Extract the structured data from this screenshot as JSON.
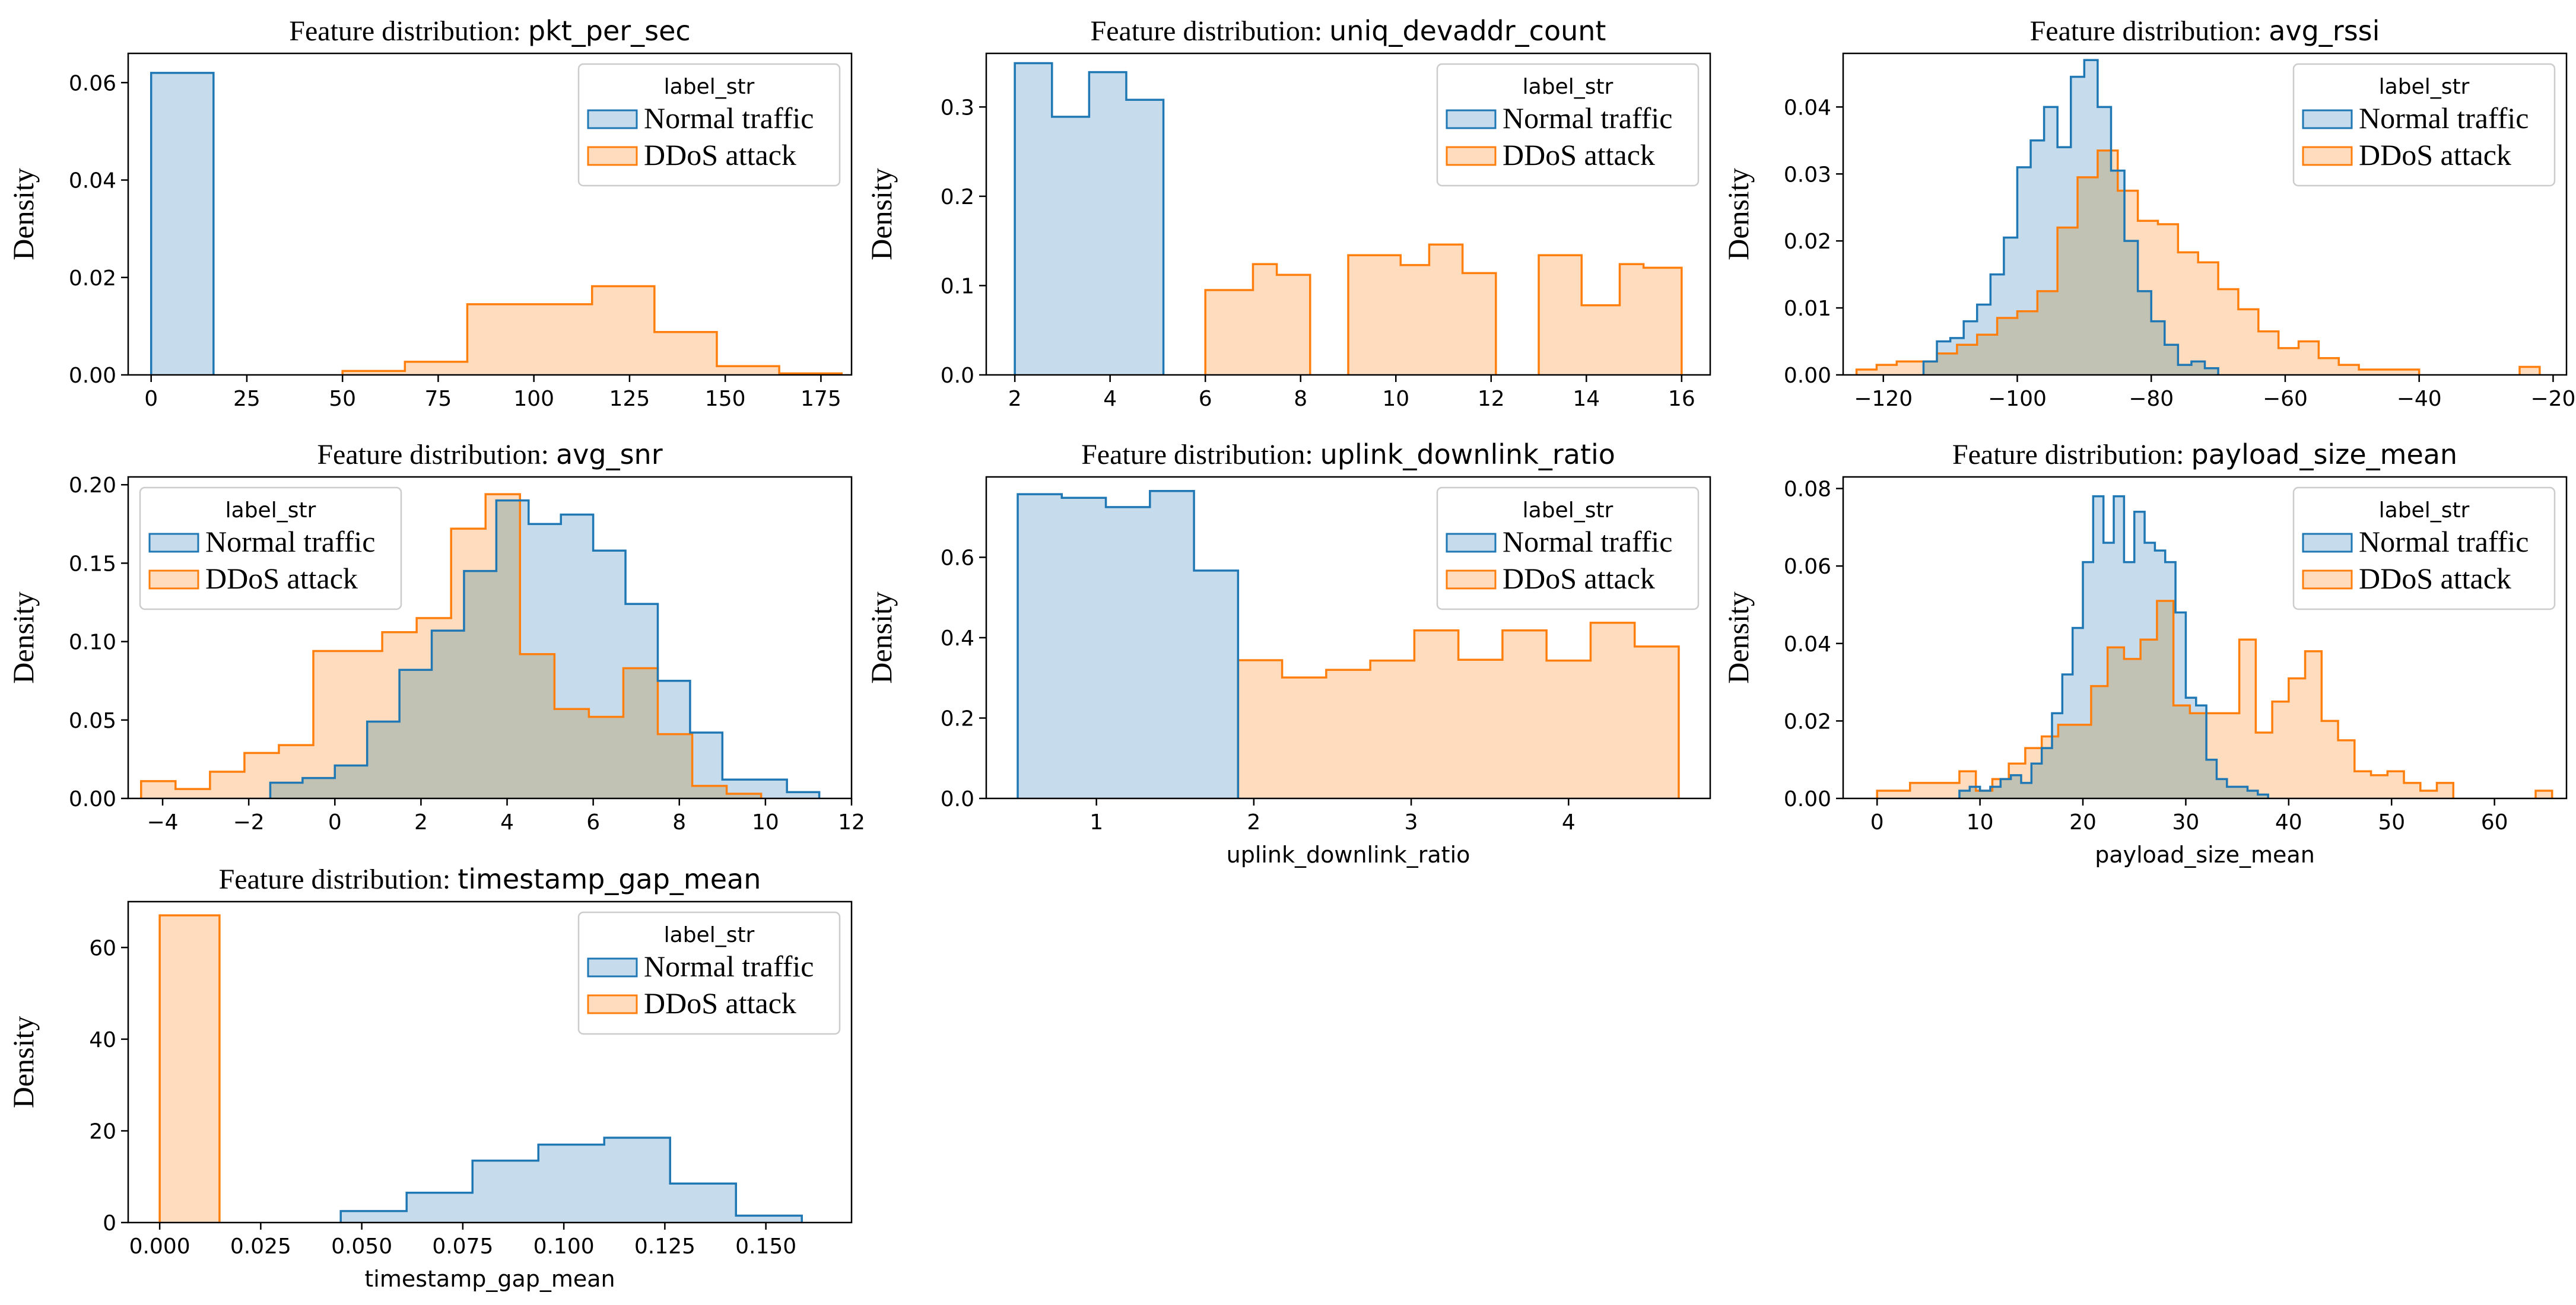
{
  "colors": {
    "normal_edge": "#1f77b4",
    "normal_fill": "#c6dbec",
    "attack_edge": "#ff7f0e",
    "attack_fill": "#ffdcbd",
    "overlap_fill": "#c2c2b4",
    "axis": "#000000"
  },
  "legend": {
    "title": "label_str",
    "entries": [
      "Normal traffic",
      "DDoS attack"
    ]
  },
  "chart_data": [
    {
      "type": "histogram",
      "title_prefix": "Feature distribution:",
      "title_var": "pkt_per_sec",
      "ylabel": "Density",
      "xlabel": "",
      "xlim": [
        -6,
        183
      ],
      "ylim": [
        0,
        0.066
      ],
      "xticks": [
        0,
        25,
        50,
        75,
        100,
        125,
        150,
        175
      ],
      "yticks": [
        0,
        0.02,
        0.04,
        0.06
      ],
      "ytick_labels": [
        "0.00",
        "0.02",
        "0.04",
        "0.06"
      ],
      "legend_position": "top-right",
      "series": [
        {
          "name": "Normal traffic",
          "edges": [
            0,
            16.3
          ],
          "density": [
            0.062
          ]
        },
        {
          "name": "DDoS attack",
          "edges": [
            50,
            66.3,
            82.6,
            98.9,
            115.2,
            131.5,
            147.8,
            164.1,
            180.4
          ],
          "density": [
            0.0008,
            0.0027,
            0.0145,
            0.0145,
            0.0182,
            0.0088,
            0.0018,
            0.0003
          ]
        }
      ]
    },
    {
      "type": "histogram",
      "title_prefix": "Feature distribution:",
      "title_var": "uniq_devaddr_count",
      "ylabel": "Density",
      "xlabel": "",
      "xlim": [
        1.4,
        16.6
      ],
      "ylim": [
        0,
        0.36
      ],
      "xticks": [
        2,
        4,
        6,
        8,
        10,
        12,
        14,
        16
      ],
      "yticks": [
        0,
        0.1,
        0.2,
        0.3
      ],
      "ytick_labels": [
        "0.0",
        "0.1",
        "0.2",
        "0.3"
      ],
      "legend_position": "top-right",
      "series": [
        {
          "name": "Normal traffic",
          "edges": [
            2,
            2.78,
            3.56,
            4.34,
            5.12
          ],
          "density": [
            0.349,
            0.289,
            0.339,
            0.308
          ]
        },
        {
          "name": "DDoS attack",
          "edges": [
            6,
            7,
            7.5,
            8.2,
            9,
            10.1,
            10.7,
            11.4,
            12.1,
            13,
            13.9,
            14.7,
            15.2,
            16
          ],
          "density": [
            0.095,
            0.124,
            0.112,
            0,
            0.134,
            0.123,
            0.146,
            0.114,
            0,
            0.134,
            0.078,
            0.124,
            0.12
          ]
        }
      ]
    },
    {
      "type": "histogram",
      "title_prefix": "Feature distribution:",
      "title_var": "avg_rssi",
      "ylabel": "Density",
      "xlabel": "",
      "xlim": [
        -126,
        -18
      ],
      "ylim": [
        0,
        0.048
      ],
      "xticks": [
        -120,
        -100,
        -80,
        -60,
        -40,
        -20
      ],
      "yticks": [
        0,
        0.01,
        0.02,
        0.03,
        0.04
      ],
      "ytick_labels": [
        "0.00",
        "0.01",
        "0.02",
        "0.03",
        "0.04"
      ],
      "legend_position": "top-right",
      "series": [
        {
          "name": "Normal traffic",
          "edges": [
            -114,
            -112,
            -110,
            -108,
            -106,
            -104,
            -102,
            -100,
            -98,
            -96,
            -94,
            -92,
            -90,
            -88,
            -86,
            -84,
            -82,
            -80,
            -78,
            -76,
            -74,
            -72,
            -70
          ],
          "density": [
            0.002,
            0.005,
            0.0055,
            0.008,
            0.0105,
            0.015,
            0.0205,
            0.031,
            0.035,
            0.04,
            0.034,
            0.0445,
            0.047,
            0.04,
            0.0305,
            0.02,
            0.0125,
            0.008,
            0.0045,
            0.0015,
            0.002,
            0.001
          ]
        },
        {
          "name": "DDoS attack",
          "edges": [
            -124,
            -121,
            -118,
            -115,
            -112,
            -109,
            -106,
            -103,
            -100,
            -97,
            -94,
            -91,
            -88,
            -85,
            -82,
            -79,
            -76,
            -73,
            -70,
            -67,
            -64,
            -61,
            -58,
            -55,
            -52,
            -49,
            -46,
            -43,
            -40,
            -37,
            -34,
            -31,
            -28,
            -25,
            -22
          ],
          "density": [
            0.0008,
            0.0015,
            0.002,
            0.002,
            0.0032,
            0.0045,
            0.006,
            0.0085,
            0.0095,
            0.0125,
            0.022,
            0.0295,
            0.0335,
            0.0275,
            0.023,
            0.0225,
            0.0183,
            0.0168,
            0.0128,
            0.0098,
            0.0065,
            0.004,
            0.005,
            0.0025,
            0.0015,
            0.0008,
            0.0008,
            0.0008,
            0,
            0,
            0,
            0,
            0,
            0.0012
          ]
        }
      ]
    },
    {
      "type": "histogram",
      "title_prefix": "Feature distribution:",
      "title_var": "avg_snr",
      "ylabel": "Density",
      "xlabel": "",
      "xlim": [
        -4.8,
        12
      ],
      "ylim": [
        0,
        0.205
      ],
      "xticks": [
        -4,
        -2,
        0,
        2,
        4,
        6,
        8,
        10,
        12
      ],
      "yticks": [
        0,
        0.05,
        0.1,
        0.15,
        0.2
      ],
      "ytick_labels": [
        "0.00",
        "0.05",
        "0.10",
        "0.15",
        "0.20"
      ],
      "legend_position": "top-left",
      "series": [
        {
          "name": "Normal traffic",
          "edges": [
            -1.5,
            -0.75,
            0,
            0.75,
            1.5,
            2.25,
            3,
            3.75,
            4.5,
            5.25,
            6,
            6.75,
            7.5,
            8.25,
            9,
            9.75,
            10.5,
            11.25
          ],
          "density": [
            0.01,
            0.013,
            0.021,
            0.049,
            0.082,
            0.107,
            0.145,
            0.19,
            0.175,
            0.181,
            0.158,
            0.124,
            0.075,
            0.042,
            0.012,
            0.012,
            0.004
          ]
        },
        {
          "name": "DDoS attack",
          "edges": [
            -4.5,
            -3.7,
            -2.9,
            -2.1,
            -1.3,
            -0.5,
            0.3,
            1.1,
            1.9,
            2.7,
            3.5,
            4.3,
            5.1,
            5.9,
            6.7,
            7.5,
            8.3,
            9.1,
            9.9
          ],
          "density": [
            0.011,
            0.006,
            0.017,
            0.029,
            0.034,
            0.094,
            0.094,
            0.106,
            0.115,
            0.172,
            0.194,
            0.092,
            0.057,
            0.052,
            0.083,
            0.041,
            0.008,
            0.003
          ]
        }
      ]
    },
    {
      "type": "histogram",
      "title_prefix": "Feature distribution:",
      "title_var": "uplink_downlink_ratio",
      "ylabel": "Density",
      "xlabel": "uplink_downlink_ratio",
      "xlim": [
        0.3,
        4.9
      ],
      "ylim": [
        0,
        0.8
      ],
      "xticks": [
        1,
        2,
        3,
        4
      ],
      "yticks": [
        0,
        0.2,
        0.4,
        0.6
      ],
      "ytick_labels": [
        "0.0",
        "0.2",
        "0.4",
        "0.6"
      ],
      "legend_position": "top-right",
      "series": [
        {
          "name": "Normal traffic",
          "edges": [
            0.5,
            0.78,
            1.06,
            1.34,
            1.62,
            1.9
          ],
          "density": [
            0.757,
            0.748,
            0.725,
            0.765,
            0.567
          ]
        },
        {
          "name": "DDoS attack",
          "edges": [
            1.9,
            2.18,
            2.46,
            2.74,
            3.02,
            3.3,
            3.58,
            3.86,
            4.14,
            4.42,
            4.7
          ],
          "density": [
            0.344,
            0.301,
            0.32,
            0.343,
            0.418,
            0.345,
            0.418,
            0.343,
            0.437,
            0.378
          ]
        }
      ]
    },
    {
      "type": "histogram",
      "title_prefix": "Feature distribution:",
      "title_var": "payload_size_mean",
      "ylabel": "Density",
      "xlabel": "payload_size_mean",
      "xlim": [
        -3.3,
        67
      ],
      "ylim": [
        0,
        0.083
      ],
      "xticks": [
        0,
        10,
        20,
        30,
        40,
        50,
        60
      ],
      "yticks": [
        0,
        0.02,
        0.04,
        0.06,
        0.08
      ],
      "ytick_labels": [
        "0.00",
        "0.02",
        "0.04",
        "0.06",
        "0.08"
      ],
      "legend_position": "top-right",
      "series": [
        {
          "name": "Normal traffic",
          "edges": [
            8,
            9,
            10,
            11,
            12,
            13,
            14,
            15,
            16,
            17,
            18,
            19,
            20,
            21,
            22,
            23,
            24,
            25,
            26,
            27,
            28,
            29,
            30,
            31,
            32,
            33,
            34,
            35,
            36,
            37,
            38
          ],
          "density": [
            0.002,
            0.003,
            0.002,
            0.003,
            0.005,
            0.006,
            0.004,
            0.009,
            0.013,
            0.022,
            0.032,
            0.044,
            0.061,
            0.078,
            0.066,
            0.078,
            0.061,
            0.074,
            0.066,
            0.064,
            0.061,
            0.048,
            0.026,
            0.024,
            0.01,
            0.005,
            0.003,
            0.003,
            0.002,
            0.001
          ]
        },
        {
          "name": "DDoS attack",
          "edges": [
            0,
            1.6,
            3.2,
            4.8,
            6.4,
            8,
            9.6,
            11.2,
            12.8,
            14.4,
            16,
            17.6,
            19.2,
            20.8,
            22.4,
            24,
            25.6,
            27.2,
            28.8,
            30.4,
            32,
            33.6,
            35.2,
            36.8,
            38.4,
            40,
            41.6,
            43.2,
            44.8,
            46.4,
            48,
            49.6,
            51.2,
            52.8,
            54.4,
            56,
            57.6,
            59.2,
            60.8,
            62.4,
            64,
            65.6
          ],
          "density": [
            0.002,
            0.002,
            0.004,
            0.004,
            0.004,
            0.007,
            0.002,
            0.005,
            0.009,
            0.013,
            0.016,
            0.019,
            0.019,
            0.029,
            0.039,
            0.036,
            0.041,
            0.051,
            0.024,
            0.022,
            0.022,
            0.022,
            0.041,
            0.017,
            0.025,
            0.031,
            0.038,
            0.02,
            0.015,
            0.007,
            0.006,
            0.007,
            0.004,
            0.002,
            0.004,
            0,
            0,
            0,
            0,
            0,
            0.002
          ]
        }
      ]
    },
    {
      "type": "histogram",
      "title_prefix": "Feature distribution:",
      "title_var": "timestamp_gap_mean",
      "ylabel": "Density",
      "xlabel": "timestamp_gap_mean",
      "xlim": [
        -0.0078,
        0.1712
      ],
      "ylim": [
        0,
        70
      ],
      "xticks": [
        0,
        0.025,
        0.05,
        0.075,
        0.1,
        0.125,
        0.15
      ],
      "xtick_labels": [
        "0.000",
        "0.025",
        "0.050",
        "0.075",
        "0.100",
        "0.125",
        "0.150"
      ],
      "yticks": [
        0,
        20,
        40,
        60
      ],
      "ytick_labels": [
        "0",
        "20",
        "40",
        "60"
      ],
      "legend_position": "top-right",
      "series": [
        {
          "name": "Normal traffic",
          "edges": [
            0.0448,
            0.0611,
            0.0774,
            0.0937,
            0.11,
            0.1263,
            0.1426,
            0.1589
          ],
          "density": [
            2.5,
            6.5,
            13.5,
            17,
            18.5,
            8.5,
            1.5
          ]
        },
        {
          "name": "DDoS attack",
          "edges": [
            0,
            0.0148
          ],
          "density": [
            67
          ]
        }
      ]
    }
  ]
}
